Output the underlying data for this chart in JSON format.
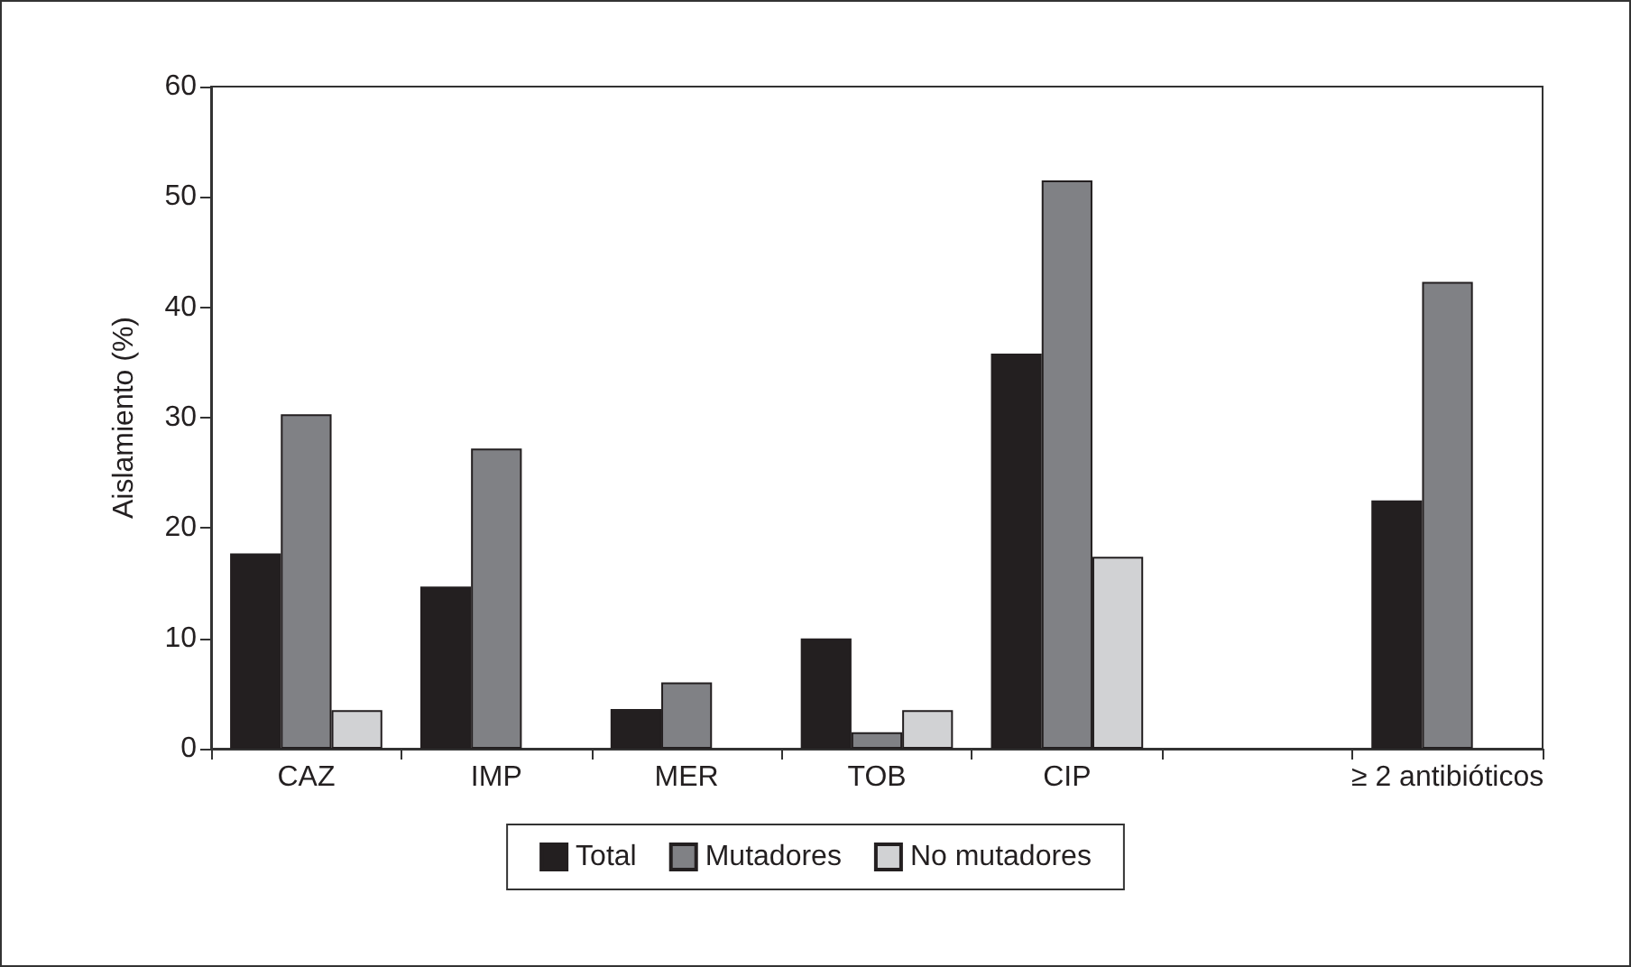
{
  "chart_data": {
    "type": "bar",
    "ylabel": "Aislamiento (%)",
    "categories": [
      "CAZ",
      "IMP",
      "MER",
      "TOB",
      "CIP",
      null,
      "≥ 2 antibióticos"
    ],
    "series": [
      {
        "name": "Total",
        "color": "#231f20",
        "values": [
          17.7,
          14.7,
          3.6,
          10.0,
          35.8,
          null,
          22.5
        ]
      },
      {
        "name": "Mutadores",
        "color": "#808185",
        "values": [
          30.3,
          27.2,
          6.0,
          1.5,
          51.5,
          null,
          42.3
        ]
      },
      {
        "name": "No mutadores",
        "color": "#d1d2d4",
        "values": [
          3.5,
          0,
          0,
          3.5,
          17.4,
          null,
          0
        ]
      }
    ],
    "ylim": [
      0,
      60
    ],
    "yticks": [
      0,
      10,
      20,
      30,
      40,
      50,
      60
    ],
    "grid": false,
    "legend": "bottom"
  }
}
